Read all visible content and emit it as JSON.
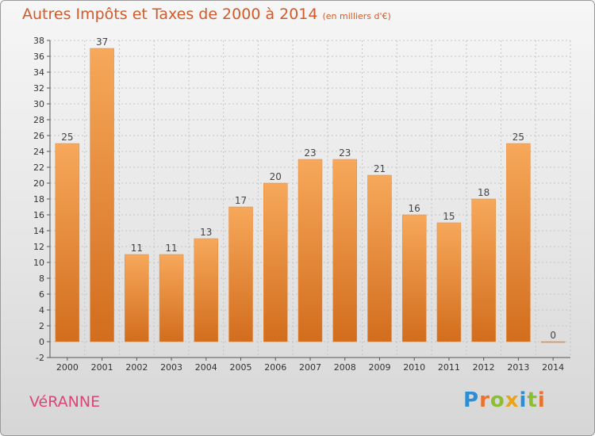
{
  "header": {
    "title": "Autres Impôts et Taxes de 2000 à 2014",
    "subtitle": "(en milliers d'€)"
  },
  "footer": {
    "commune": "VéRANNE",
    "logo_letters": [
      {
        "char": "P",
        "color": "#2b8fd6"
      },
      {
        "char": "r",
        "color": "#e9722e"
      },
      {
        "char": "o",
        "color": "#8cbf2f"
      },
      {
        "char": "x",
        "color": "#e8a51b"
      },
      {
        "char": "i",
        "color": "#2b8fd6"
      },
      {
        "char": "t",
        "color": "#8cbf2f"
      },
      {
        "char": "i",
        "color": "#e9722e"
      }
    ]
  },
  "chart_data": {
    "type": "bar",
    "title": "Autres Impôts et Taxes de 2000 à 2014",
    "subtitle": "(en milliers d'€)",
    "categories": [
      "2000",
      "2001",
      "2002",
      "2003",
      "2004",
      "2005",
      "2006",
      "2007",
      "2008",
      "2009",
      "2010",
      "2011",
      "2012",
      "2013",
      "2014"
    ],
    "values": [
      25,
      37,
      11,
      11,
      13,
      17,
      20,
      23,
      23,
      21,
      16,
      15,
      18,
      25,
      0
    ],
    "yticks": [
      -2,
      0,
      2,
      4,
      6,
      8,
      10,
      12,
      14,
      16,
      18,
      20,
      22,
      24,
      26,
      28,
      30,
      32,
      34,
      36,
      38
    ],
    "ylim": [
      -2,
      38
    ],
    "xlabel": "",
    "ylabel": "",
    "grid": true,
    "bar_color_top": "#f7a85a",
    "bar_color_bottom": "#d26d1d",
    "label_color": "#444444"
  }
}
